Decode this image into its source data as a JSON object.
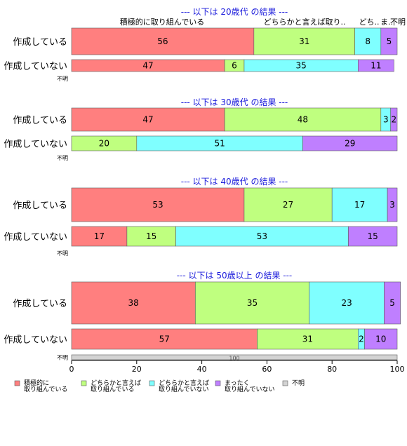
{
  "chart_data": {
    "type": "bar",
    "orientation": "horizontal",
    "stacked": true,
    "percent": true,
    "xlim": [
      0,
      100
    ],
    "xticks": [
      0,
      20,
      40,
      60,
      80,
      100
    ],
    "categories": [
      "積極的に取り組んでいる",
      "どちらかと言えば取り組んでいる",
      "どちらかと言えば取り組んでいない",
      "まったく取り組んでいない",
      "不明"
    ],
    "colors": [
      "#ff7f7f",
      "#bfff7f",
      "#7fffff",
      "#bf7fff",
      "#d3d3d3"
    ],
    "header_labels": [
      "積極的に取り組んでいる",
      "どちらかと言えば取り..",
      "どち..",
      "ま..",
      "不明"
    ],
    "legend": {
      "placement": "bottom",
      "items": [
        {
          "line1": "積極的に",
          "line2": "取り組んでいる"
        },
        {
          "line1": "どちらかと言えば",
          "line2": "取り組んでいる"
        },
        {
          "line1": "どちらかと言えば",
          "line2": "取り組んでいない"
        },
        {
          "line1": "まったく",
          "line2": "取り組んでいない"
        },
        {
          "line1": "不明",
          "line2": ""
        }
      ]
    },
    "groups": [
      {
        "title": "--- 以下は 20歳代 の結果 ---",
        "rows": [
          {
            "label": "作成している",
            "values": [
              56,
              31,
              8,
              5,
              0
            ]
          },
          {
            "label": "作成していない",
            "values": [
              47,
              6,
              35,
              11,
              0
            ]
          },
          {
            "label": "不明",
            "values": [
              0,
              0,
              0,
              0,
              0
            ]
          }
        ]
      },
      {
        "title": "--- 以下は 30歳代 の結果 ---",
        "rows": [
          {
            "label": "作成している",
            "values": [
              47,
              48,
              3,
              2,
              0
            ]
          },
          {
            "label": "作成していない",
            "values": [
              0,
              20,
              51,
              29,
              0
            ]
          },
          {
            "label": "不明",
            "values": [
              0,
              0,
              0,
              0,
              0
            ]
          }
        ]
      },
      {
        "title": "--- 以下は 40歳代 の結果 ---",
        "rows": [
          {
            "label": "作成している",
            "values": [
              53,
              27,
              17,
              3,
              0
            ]
          },
          {
            "label": "作成していない",
            "values": [
              17,
              15,
              53,
              15,
              0
            ]
          },
          {
            "label": "不明",
            "values": [
              0,
              0,
              0,
              0,
              0
            ]
          }
        ]
      },
      {
        "title": "--- 以下は 50歳以上 の結果 ---",
        "rows": [
          {
            "label": "作成している",
            "values": [
              38,
              35,
              23,
              5,
              0
            ]
          },
          {
            "label": "作成していない",
            "values": [
              57,
              31,
              2,
              10,
              0
            ]
          },
          {
            "label": "不明",
            "values": [
              0,
              0,
              0,
              0,
              100
            ]
          }
        ]
      }
    ]
  }
}
